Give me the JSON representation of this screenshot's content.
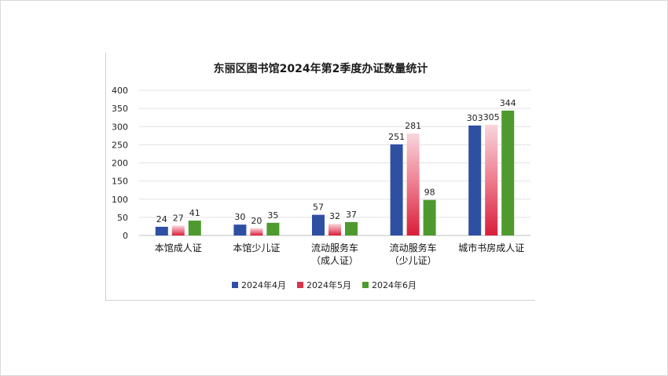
{
  "chart_data": {
    "type": "bar",
    "title": "东丽区图书馆2024年第2季度办证数量统计",
    "categories": [
      [
        "本馆成人证"
      ],
      [
        "本馆少儿证"
      ],
      [
        "流动服务车",
        "（成人证）"
      ],
      [
        "流动服务车",
        "（少儿证）"
      ],
      [
        "城市书房成人证"
      ]
    ],
    "series": [
      {
        "name": "2024年4月",
        "values": [
          24,
          30,
          57,
          251,
          303
        ],
        "color": "#2f4fa3"
      },
      {
        "name": "2024年5月",
        "values": [
          27,
          20,
          32,
          281,
          305
        ],
        "color": "#e0314a"
      },
      {
        "name": "2024年6月",
        "values": [
          41,
          35,
          37,
          98,
          344
        ],
        "color": "#4e9a2e"
      }
    ],
    "yticks": [
      "0",
      "50",
      "100",
      "150",
      "200",
      "250",
      "300",
      "350",
      "400"
    ],
    "ylim": [
      0,
      400
    ],
    "grid": true,
    "legend_position": "bottom"
  }
}
